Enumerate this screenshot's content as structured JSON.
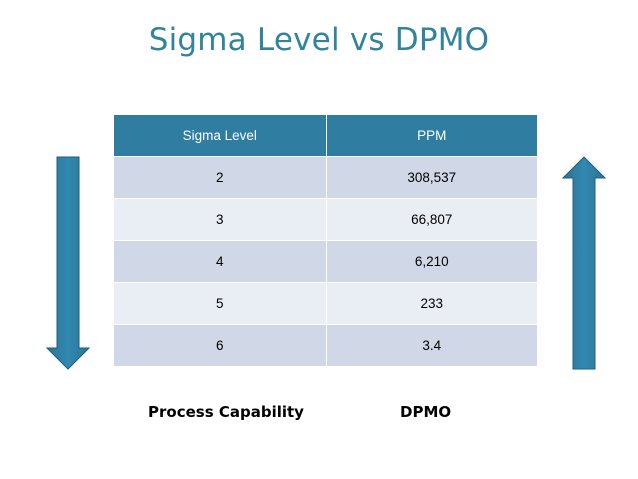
{
  "title": "Sigma Level vs DPMO",
  "table": {
    "headers": [
      "Sigma Level",
      "PPM"
    ],
    "rows": [
      [
        "2",
        "308,537"
      ],
      [
        "3",
        "66,807"
      ],
      [
        "4",
        "6,210"
      ],
      [
        "5",
        "233"
      ],
      [
        "6",
        "3.4"
      ]
    ]
  },
  "labels": {
    "left": "Process Capability",
    "right": "DPMO"
  },
  "colors": {
    "title": "#31849b",
    "header_bg": "#2f7ea1",
    "row_dark": "#d0d8e8",
    "row_light": "#e9edf4",
    "arrow_fill": "#2e7ea2"
  },
  "icons": {
    "left_arrow": "arrow-down-icon",
    "right_arrow": "arrow-up-icon"
  }
}
